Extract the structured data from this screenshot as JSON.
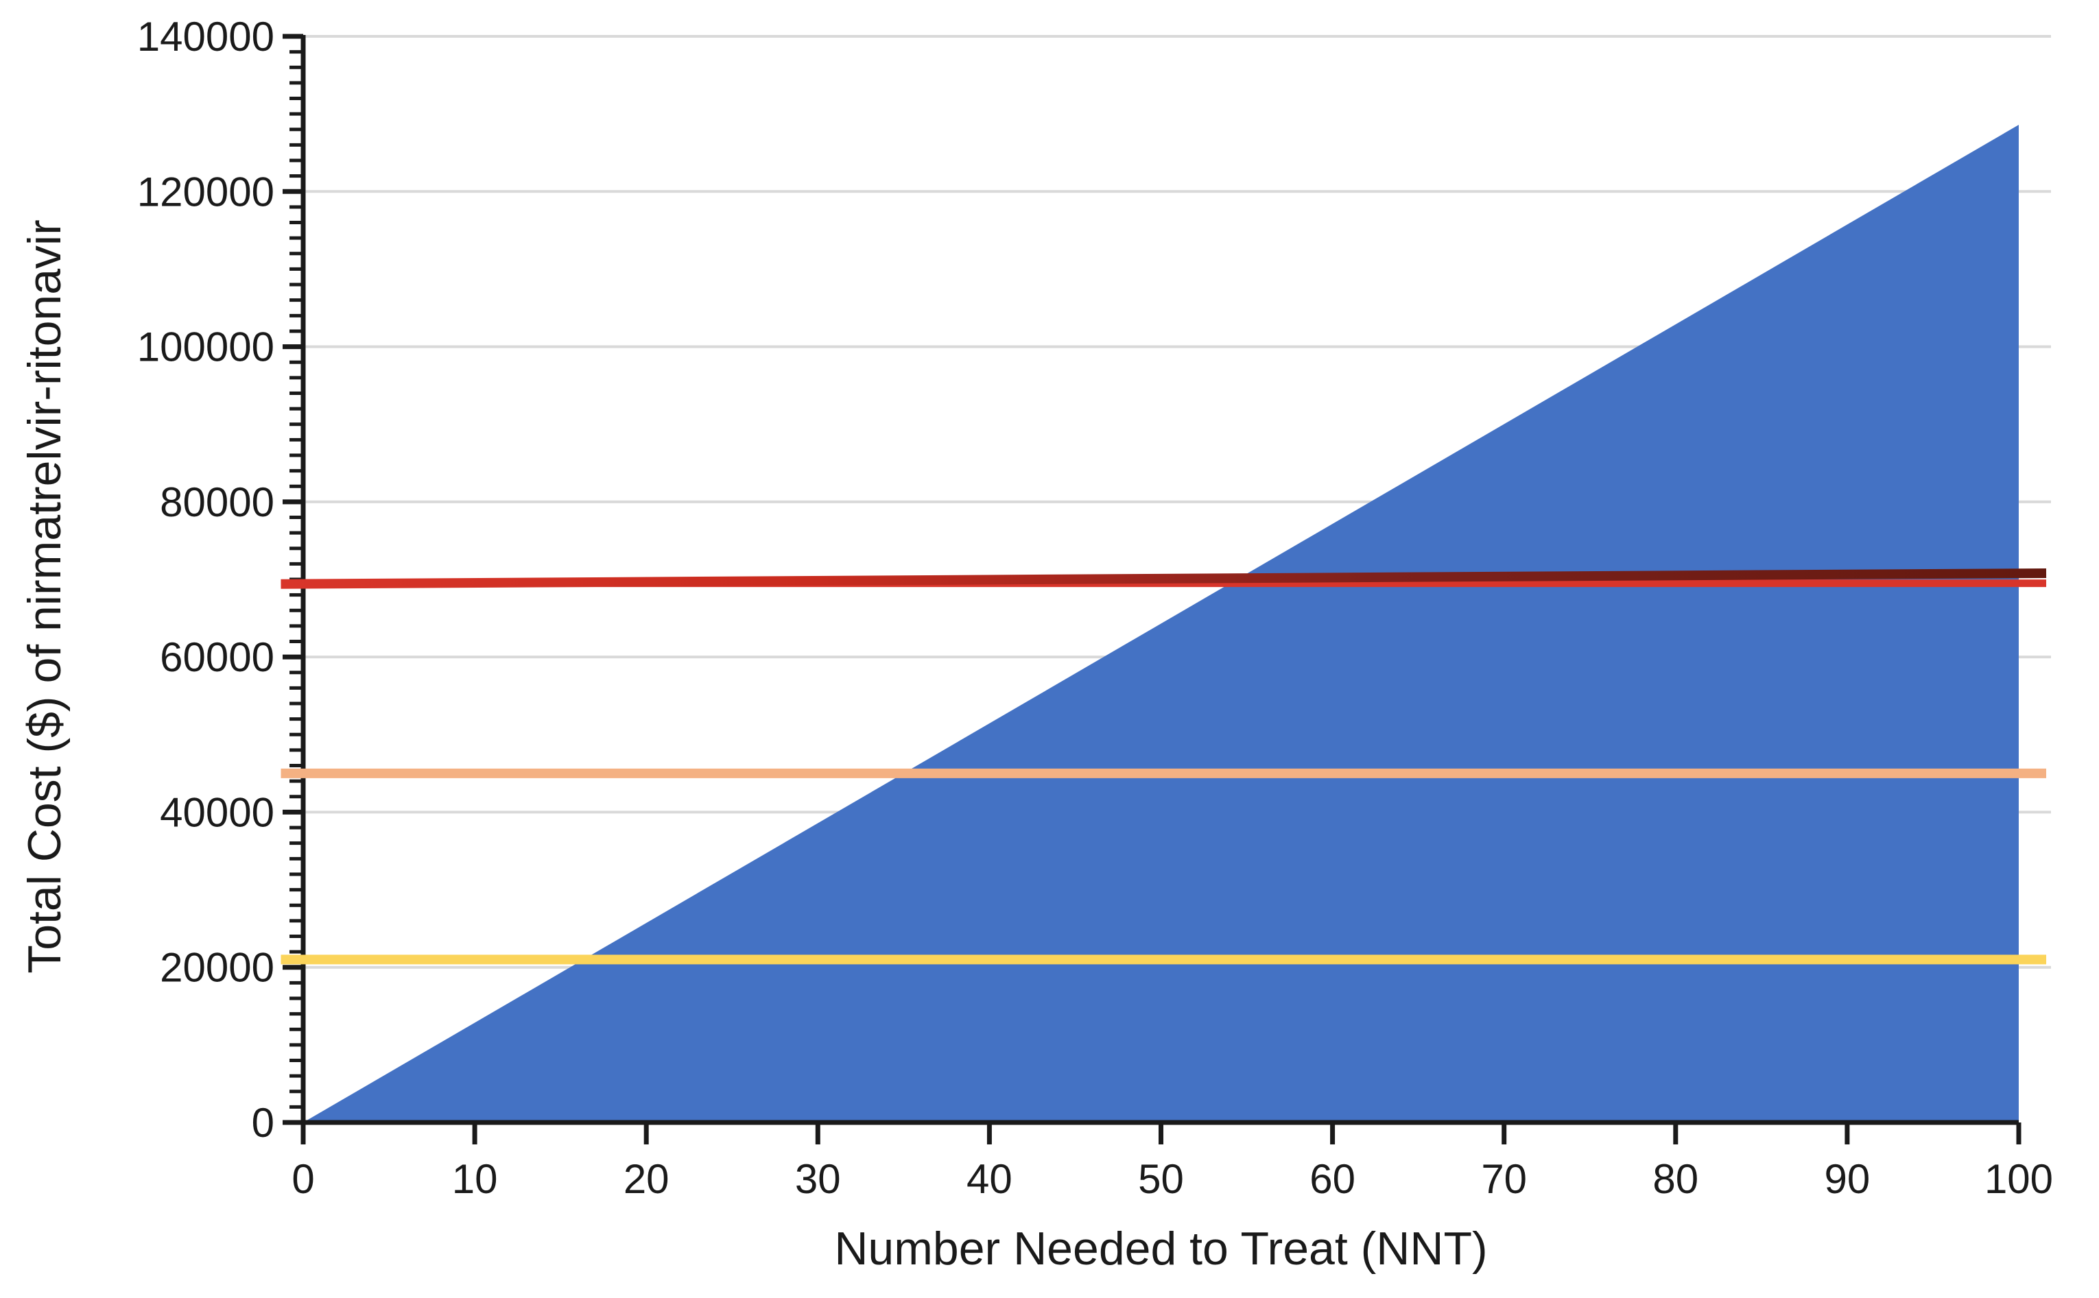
{
  "chart_data": {
    "type": "area",
    "title": "",
    "xlabel": "Number Needed to Treat (NNT)",
    "ylabel": "Total Cost ($) of nirmatrelvir-ritonavir",
    "xlim": [
      0,
      100
    ],
    "ylim": [
      0,
      140000
    ],
    "x_ticks": [
      0,
      10,
      20,
      30,
      40,
      50,
      60,
      70,
      80,
      90,
      100
    ],
    "y_ticks": [
      0,
      20000,
      40000,
      60000,
      80000,
      100000,
      120000,
      140000
    ],
    "y_minor_tick_step": 2000,
    "grid": "horizontal-only",
    "legend_position": "none",
    "colors": {
      "axis": "#1a1a1a",
      "tick_text": "#1a1a1a",
      "grid": "#d9d9d9",
      "background": "#ffffff"
    },
    "series": [
      {
        "name": "total-cost-area",
        "type": "area",
        "color": "#4472C4",
        "x": [
          0,
          100
        ],
        "y": [
          0,
          128600
        ]
      },
      {
        "name": "threshold-line-red",
        "type": "line",
        "value": 70000,
        "x": [
          -1.3,
          101.6
        ],
        "y": [
          69400,
          70800
        ],
        "underlay_y": 69500,
        "gradient_stops": [
          [
            "0%",
            "#D8352A"
          ],
          [
            "30%",
            "#C92B1E"
          ],
          [
            "62%",
            "#7E211C"
          ],
          [
            "100%",
            "#63190F"
          ]
        ],
        "width": 14
      },
      {
        "name": "threshold-line-orange",
        "type": "line",
        "value": 45000,
        "x": [
          -1.3,
          101.6
        ],
        "y": [
          45000,
          45000
        ],
        "color": "#F4B183",
        "width": 14
      },
      {
        "name": "threshold-line-yellow",
        "type": "line",
        "value": 21000,
        "x": [
          -1.3,
          101.6
        ],
        "y": [
          21000,
          21000
        ],
        "color": "#FBD45A",
        "width": 14
      }
    ]
  }
}
